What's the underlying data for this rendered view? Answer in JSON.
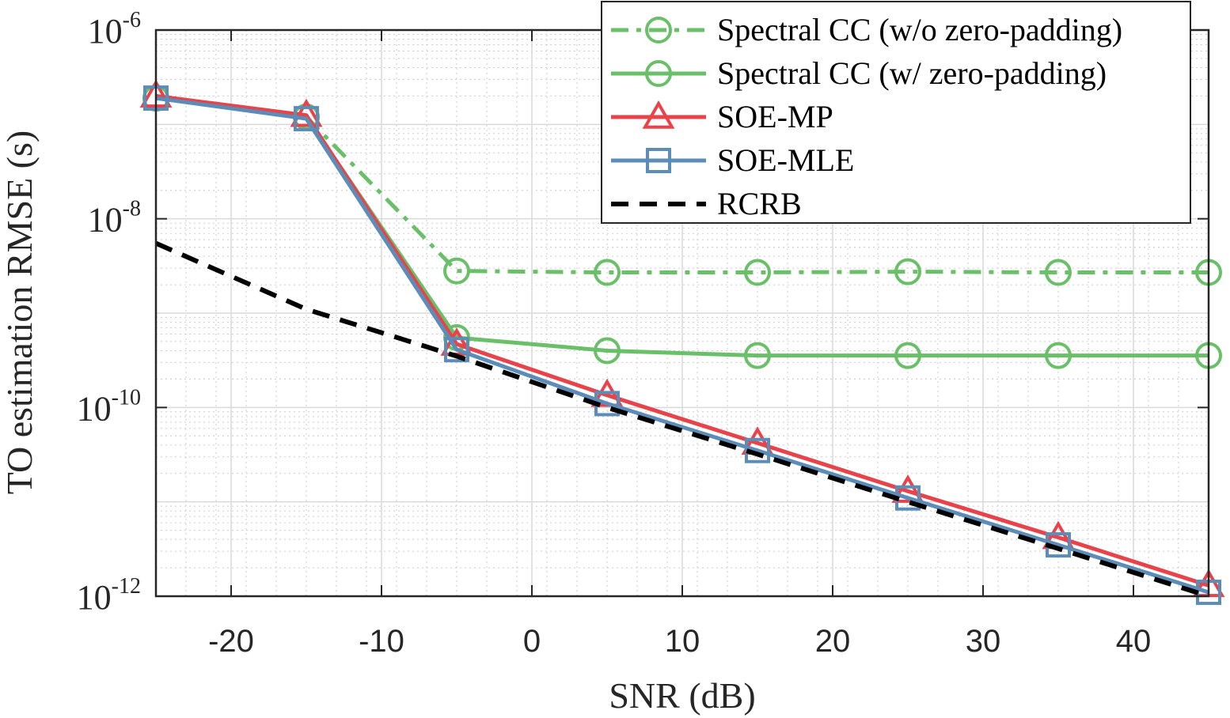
{
  "chart_data": {
    "type": "line",
    "title": "",
    "xlabel": "SNR (dB)",
    "ylabel": "TO estimation RMSE (s)",
    "xlim": [
      -25,
      45
    ],
    "ylim": [
      1e-12,
      1e-06
    ],
    "yscale": "log",
    "grid": true,
    "minor_grid": true,
    "legend_position": "top-right",
    "x": [
      -25,
      -15,
      -5,
      5,
      15,
      25,
      35,
      45
    ],
    "x_ticks": [
      -20,
      -10,
      0,
      10,
      20,
      30,
      40
    ],
    "x_tick_labels": [
      "-20",
      "-10",
      "0",
      "10",
      "20",
      "30",
      "40"
    ],
    "y_ticks": [
      {
        "value": 1e-06,
        "base": "10",
        "exp": "-6"
      },
      {
        "value": 1e-08,
        "base": "10",
        "exp": "-8"
      },
      {
        "value": 1e-10,
        "base": "10",
        "exp": "-10"
      },
      {
        "value": 1e-12,
        "base": "10",
        "exp": "-12"
      }
    ],
    "series": [
      {
        "name": "Spectral CC (w/o zero-padding)",
        "color": "#6abf69",
        "dash": "dashdot",
        "marker": "circle",
        "values": [
          1.9e-07,
          1.2e-07,
          2.8e-09,
          2.7e-09,
          2.7e-09,
          2.75e-09,
          2.7e-09,
          2.7e-09
        ]
      },
      {
        "name": "Spectral CC (w/ zero-padding)",
        "color": "#6abf69",
        "dash": "solid",
        "marker": "circle",
        "values": [
          1.9e-07,
          1.2e-07,
          5.5e-10,
          4e-10,
          3.55e-10,
          3.55e-10,
          3.55e-10,
          3.55e-10
        ]
      },
      {
        "name": "SOE-MP",
        "color": "#e8434a",
        "dash": "solid",
        "marker": "triangle",
        "values": [
          2e-07,
          1.25e-07,
          4.7e-10,
          1.35e-10,
          4.2e-11,
          1.3e-11,
          4.2e-12,
          1.3e-12
        ]
      },
      {
        "name": "SOE-MLE",
        "color": "#5b8db8",
        "dash": "solid",
        "marker": "square",
        "values": [
          1.9e-07,
          1.15e-07,
          4.1e-10,
          1.1e-10,
          3.5e-11,
          1.1e-11,
          3.5e-12,
          1.1e-12
        ]
      },
      {
        "name": "RCRB",
        "color": "#000000",
        "dash": "dashed",
        "marker": "none",
        "values": [
          5.5e-09,
          1.1e-09,
          3.5e-10,
          1e-10,
          3.2e-11,
          1e-11,
          3.2e-12,
          1e-12
        ]
      }
    ]
  }
}
